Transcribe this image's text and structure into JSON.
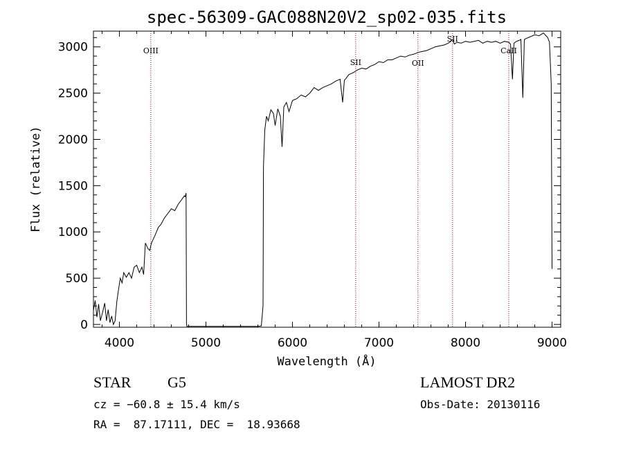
{
  "chart_data": {
    "type": "line",
    "title": "spec-56309-GAC088N20V2_sp02-035.fits",
    "xlabel": "Wavelength (Å)",
    "ylabel": "Flux (relative)",
    "xlim": [
      3700,
      9100
    ],
    "ylim": [
      -30,
      3170
    ],
    "xticks": [
      4000,
      5000,
      6000,
      7000,
      8000,
      9000
    ],
    "xtick_labels": [
      "4000",
      "5000",
      "6000",
      "7000",
      "8000",
      "9000"
    ],
    "yticks": [
      0,
      500,
      1000,
      1500,
      2000,
      2500,
      3000
    ],
    "ytick_labels": [
      "0",
      "500",
      "1000",
      "1500",
      "2000",
      "2500",
      "3000"
    ],
    "grid": false,
    "series": [
      {
        "x": [
          3700,
          3720,
          3740,
          3760,
          3780,
          3800,
          3830,
          3850,
          3870,
          3890,
          3910,
          3930,
          3950,
          3970,
          3990,
          4010,
          4030,
          4050,
          4080,
          4110,
          4140,
          4170,
          4200,
          4230,
          4260,
          4280,
          4300,
          4330,
          4350,
          4370,
          4390,
          4410,
          4450,
          4480,
          4520,
          4560,
          4600,
          4640,
          4680,
          4720,
          4750,
          4760,
          4770,
          4775,
          4780,
          5600,
          5640,
          5660,
          5665,
          5680,
          5700,
          5720,
          5750,
          5780,
          5800,
          5830,
          5860,
          5880,
          5900,
          5930,
          5960,
          6000,
          6050,
          6100,
          6150,
          6200,
          6250,
          6300,
          6350,
          6400,
          6450,
          6500,
          6550,
          6580,
          6600,
          6620,
          6650,
          6700,
          6750,
          6800,
          6850,
          6900,
          6950,
          7000,
          7050,
          7100,
          7150,
          7200,
          7250,
          7300,
          7350,
          7400,
          7450,
          7500,
          7550,
          7600,
          7650,
          7700,
          7750,
          7800,
          7830,
          7850,
          7870,
          7900,
          7950,
          8000,
          8050,
          8100,
          8150,
          8200,
          8250,
          8300,
          8350,
          8400,
          8450,
          8500,
          8520,
          8542,
          8560,
          8590,
          8620,
          8640,
          8662,
          8680,
          8700,
          8750,
          8800,
          8850,
          8900,
          8950,
          8970,
          8990,
          9000
        ],
        "y": [
          150,
          260,
          80,
          220,
          40,
          110,
          230,
          40,
          160,
          20,
          90,
          0,
          40,
          250,
          380,
          500,
          450,
          560,
          510,
          560,
          500,
          620,
          640,
          560,
          620,
          540,
          880,
          820,
          800,
          880,
          920,
          960,
          1050,
          1080,
          1150,
          1200,
          1250,
          1230,
          1300,
          1350,
          1390,
          1380,
          1420,
          10,
          -20,
          -20,
          -15,
          200,
          1700,
          2100,
          2250,
          2200,
          2320,
          2280,
          2150,
          2330,
          2250,
          1920,
          2350,
          2400,
          2300,
          2420,
          2440,
          2480,
          2460,
          2500,
          2560,
          2530,
          2560,
          2580,
          2600,
          2630,
          2650,
          2400,
          2640,
          2660,
          2700,
          2720,
          2750,
          2770,
          2760,
          2790,
          2810,
          2840,
          2830,
          2860,
          2860,
          2880,
          2900,
          2890,
          2910,
          2920,
          2940,
          2950,
          2960,
          2980,
          3000,
          3010,
          3020,
          3040,
          3060,
          3080,
          3030,
          3050,
          3040,
          3060,
          3050,
          3060,
          3070,
          3040,
          3060,
          3050,
          3060,
          3040,
          3060,
          3050,
          3030,
          2650,
          3040,
          3060,
          3070,
          3080,
          2450,
          3080,
          3090,
          3110,
          3130,
          3120,
          3150,
          3100,
          3050,
          2600,
          600
        ]
      }
    ],
    "lines": [
      {
        "label": "OIII",
        "x": 4363
      },
      {
        "label": "SII",
        "x": 6731
      },
      {
        "label": "OII",
        "x": 7450
      },
      {
        "label": "SII",
        "x": 7850
      },
      {
        "label": "CaII",
        "x": 8500
      }
    ]
  },
  "info": {
    "object_class": "STAR",
    "subclass": "G5",
    "survey": "LAMOST DR2",
    "cz": "cz = −60.8 ± 15.4 km/s",
    "obs_date": "Obs-Date: 20130116",
    "coords": "RA =  87.17111, DEC =  18.93668"
  }
}
